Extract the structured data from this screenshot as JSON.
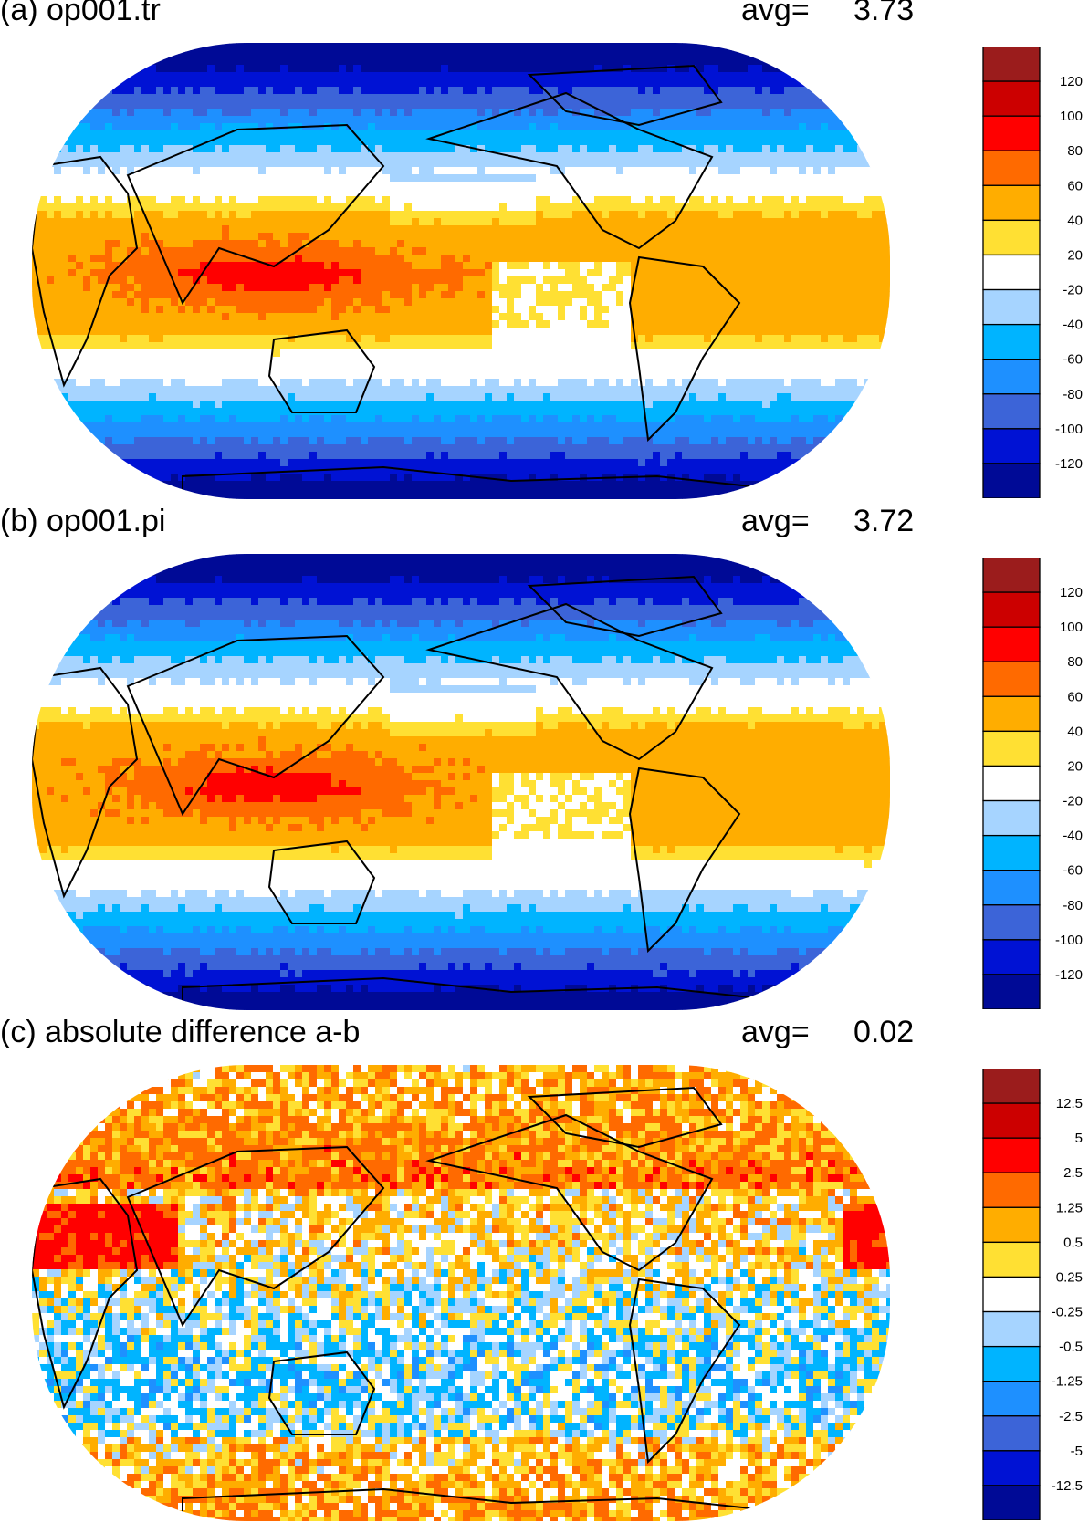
{
  "panels": [
    {
      "id": "a",
      "title": "(a) op001.tr",
      "avg_label": "avg=",
      "avg_value": "3.73",
      "levels": [
        "120",
        "100",
        "80",
        "60",
        "40",
        "20",
        "-20",
        "-40",
        "-60",
        "-80",
        "-100",
        "-120"
      ]
    },
    {
      "id": "b",
      "title": "(b) op001.pi",
      "avg_label": "avg=",
      "avg_value": "3.72",
      "levels": [
        "120",
        "100",
        "80",
        "60",
        "40",
        "20",
        "-20",
        "-40",
        "-60",
        "-80",
        "-100",
        "-120"
      ]
    },
    {
      "id": "c",
      "title": "(c) absolute difference a-b",
      "avg_label": "avg=",
      "avg_value": "0.02",
      "levels": [
        "12.5",
        "5",
        "2.5",
        "1.25",
        "0.5",
        "0.25",
        "-0.25",
        "-0.5",
        "-1.25",
        "-2.5",
        "-5",
        "-12.5"
      ]
    }
  ],
  "palette": [
    "#9b1c1c",
    "#cc0000",
    "#ff0000",
    "#ff6a00",
    "#ffad00",
    "#ffe033",
    "#ffffff",
    "#a6d4ff",
    "#00b4ff",
    "#1e90ff",
    "#3c64d8",
    "#0012d4",
    "#000a96"
  ]
}
